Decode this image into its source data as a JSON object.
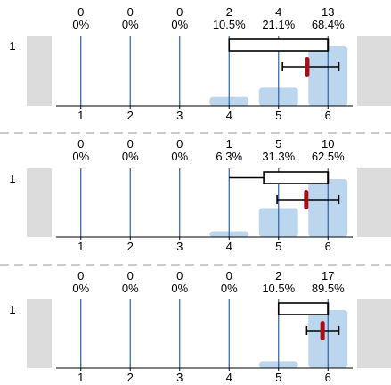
{
  "chart_data": [
    {
      "type": "bar",
      "row_label": "1",
      "categories": [
        "1",
        "2",
        "3",
        "4",
        "5",
        "6"
      ],
      "counts": [
        "0",
        "0",
        "0",
        "2",
        "4",
        "13"
      ],
      "percents": [
        "0%",
        "0%",
        "0%",
        "10.5%",
        "21.1%",
        "68.4%"
      ],
      "values": [
        0,
        0,
        0,
        2,
        4,
        13
      ],
      "box": {
        "whisker_low": null,
        "q1": 4,
        "median": 6,
        "q3": 6,
        "whisker_high": null
      },
      "mean": 5.58,
      "ci": [
        5.08,
        6.22
      ],
      "xlim": [
        0.5,
        6.5
      ]
    },
    {
      "type": "bar",
      "row_label": "1",
      "categories": [
        "1",
        "2",
        "3",
        "4",
        "5",
        "6"
      ],
      "counts": [
        "0",
        "0",
        "0",
        "1",
        "5",
        "10"
      ],
      "percents": [
        "0%",
        "0%",
        "0%",
        "6.3%",
        "31.3%",
        "62.5%"
      ],
      "values": [
        0,
        0,
        0,
        1,
        5,
        10
      ],
      "box": {
        "whisker_low": 4,
        "q1": 4.7,
        "median": 6,
        "q3": 6,
        "whisker_high": null
      },
      "mean": 5.56,
      "ci": [
        4.97,
        6.22
      ],
      "xlim": [
        0.5,
        6.5
      ]
    },
    {
      "type": "bar",
      "row_label": "1",
      "categories": [
        "1",
        "2",
        "3",
        "4",
        "5",
        "6"
      ],
      "counts": [
        "0",
        "0",
        "0",
        "0",
        "2",
        "17"
      ],
      "percents": [
        "0%",
        "0%",
        "0%",
        "0%",
        "10.5%",
        "89.5%"
      ],
      "values": [
        0,
        0,
        0,
        0,
        2,
        17
      ],
      "box": {
        "whisker_low": null,
        "q1": 5,
        "median": 6,
        "q3": 6,
        "whisker_high": null
      },
      "mean": 5.89,
      "ci": [
        5.57,
        6.22
      ],
      "xlim": [
        0.5,
        6.5
      ]
    }
  ],
  "colors": {
    "bar": "#bcd6ee",
    "gridline": "#2a62a6",
    "side_block": "#dcdcdc",
    "mean_marker": "#a50f15",
    "separator": "#9a9a9a"
  }
}
